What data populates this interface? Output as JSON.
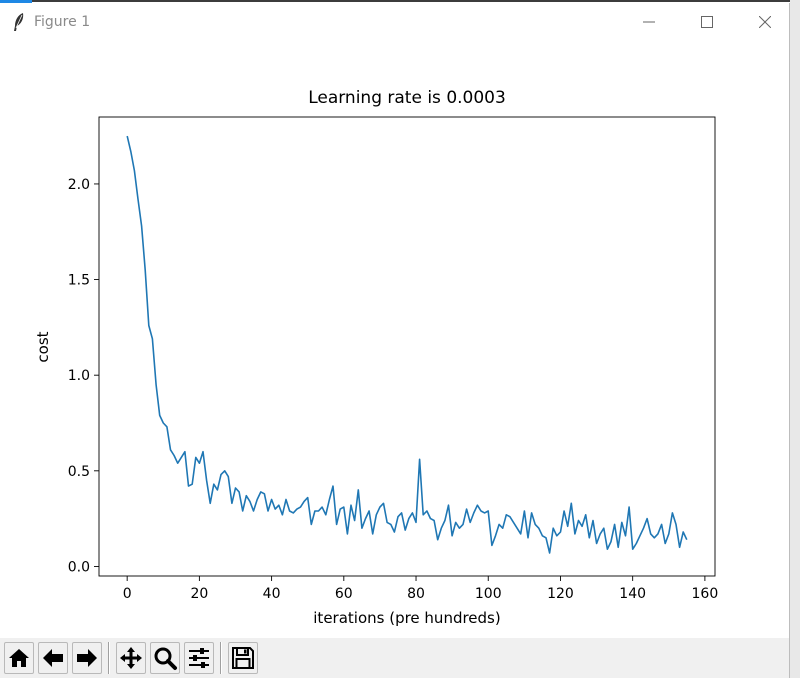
{
  "window": {
    "title": "Figure 1",
    "minimize_glyph": "—",
    "maximize_glyph": "☐",
    "close_glyph": "✕"
  },
  "toolbar": {
    "buttons": [
      {
        "name": "home",
        "icon": "home-icon"
      },
      {
        "name": "back",
        "icon": "arrow-left-icon"
      },
      {
        "name": "forward",
        "icon": "arrow-right-icon"
      },
      {
        "name": "pan",
        "icon": "move-icon"
      },
      {
        "name": "zoom",
        "icon": "magnifier-icon"
      },
      {
        "name": "configure-subplots",
        "icon": "sliders-icon"
      },
      {
        "name": "save",
        "icon": "floppy-disk-icon"
      }
    ]
  },
  "chart_data": {
    "type": "line",
    "title": "Learning rate is 0.0003",
    "xlabel": "iterations (pre hundreds)",
    "ylabel": "cost",
    "xlim": [
      -7.8,
      162.8
    ],
    "ylim": [
      -0.05,
      2.35
    ],
    "xticks": [
      "0",
      "20",
      "40",
      "60",
      "80",
      "100",
      "120",
      "140",
      "160"
    ],
    "xtick_values": [
      0,
      20,
      40,
      60,
      80,
      100,
      120,
      140,
      160
    ],
    "yticks": [
      "0.0",
      "0.5",
      "1.0",
      "1.5",
      "2.0"
    ],
    "ytick_values": [
      0.0,
      0.5,
      1.0,
      1.5,
      2.0
    ],
    "grid": false,
    "line_color": "#1f77b4",
    "series": [
      {
        "values": [
          2.25,
          2.17,
          2.07,
          1.92,
          1.78,
          1.55,
          1.26,
          1.19,
          0.95,
          0.79,
          0.75,
          0.73,
          0.61,
          0.58,
          0.54,
          0.57,
          0.6,
          0.42,
          0.43,
          0.57,
          0.54,
          0.6,
          0.45,
          0.33,
          0.43,
          0.4,
          0.48,
          0.5,
          0.47,
          0.33,
          0.41,
          0.39,
          0.29,
          0.37,
          0.34,
          0.29,
          0.35,
          0.39,
          0.38,
          0.29,
          0.35,
          0.3,
          0.32,
          0.27,
          0.35,
          0.29,
          0.28,
          0.3,
          0.31,
          0.34,
          0.36,
          0.22,
          0.29,
          0.29,
          0.31,
          0.27,
          0.35,
          0.42,
          0.22,
          0.3,
          0.31,
          0.17,
          0.32,
          0.24,
          0.4,
          0.2,
          0.25,
          0.29,
          0.17,
          0.27,
          0.31,
          0.33,
          0.23,
          0.22,
          0.18,
          0.26,
          0.28,
          0.19,
          0.25,
          0.28,
          0.23,
          0.56,
          0.27,
          0.29,
          0.25,
          0.24,
          0.14,
          0.2,
          0.24,
          0.32,
          0.16,
          0.23,
          0.2,
          0.22,
          0.3,
          0.23,
          0.28,
          0.32,
          0.29,
          0.28,
          0.29,
          0.11,
          0.16,
          0.22,
          0.2,
          0.27,
          0.26,
          0.23,
          0.2,
          0.17,
          0.29,
          0.15,
          0.28,
          0.22,
          0.2,
          0.16,
          0.15,
          0.07,
          0.2,
          0.16,
          0.18,
          0.29,
          0.21,
          0.33,
          0.17,
          0.24,
          0.21,
          0.27,
          0.15,
          0.24,
          0.12,
          0.17,
          0.2,
          0.09,
          0.13,
          0.22,
          0.1,
          0.23,
          0.16,
          0.31,
          0.09,
          0.12,
          0.16,
          0.2,
          0.25,
          0.17,
          0.15,
          0.17,
          0.22,
          0.12,
          0.17,
          0.28,
          0.22,
          0.1,
          0.18,
          0.14
        ]
      }
    ]
  }
}
